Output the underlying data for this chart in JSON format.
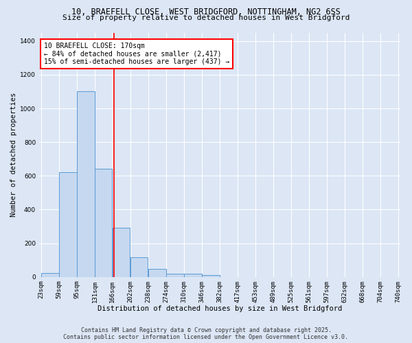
{
  "title_line1": "10, BRAEFELL CLOSE, WEST BRIDGFORD, NOTTINGHAM, NG2 6SS",
  "title_line2": "Size of property relative to detached houses in West Bridgford",
  "xlabel": "Distribution of detached houses by size in West Bridgford",
  "ylabel": "Number of detached properties",
  "bin_edges": [
    23,
    59,
    95,
    131,
    166,
    202,
    238,
    274,
    310,
    346,
    382,
    417,
    453,
    489,
    525,
    561,
    597,
    632,
    668,
    704,
    740
  ],
  "counts": [
    25,
    620,
    1100,
    640,
    290,
    115,
    47,
    20,
    18,
    10,
    0,
    0,
    0,
    0,
    0,
    0,
    0,
    0,
    0,
    0
  ],
  "bar_color": "#c5d8f0",
  "bar_edge_color": "#5b9bd5",
  "vline_x": 170,
  "vline_color": "red",
  "annotation_text": "10 BRAEFELL CLOSE: 170sqm\n← 84% of detached houses are smaller (2,417)\n15% of semi-detached houses are larger (437) →",
  "annotation_box_color": "white",
  "annotation_box_edge": "red",
  "background_color": "#dce6f5",
  "grid_color": "white",
  "ylim": [
    0,
    1450
  ],
  "yticks": [
    0,
    200,
    400,
    600,
    800,
    1000,
    1200,
    1400
  ],
  "tick_labels": [
    "23sqm",
    "59sqm",
    "95sqm",
    "131sqm",
    "166sqm",
    "202sqm",
    "238sqm",
    "274sqm",
    "310sqm",
    "346sqm",
    "382sqm",
    "417sqm",
    "453sqm",
    "489sqm",
    "525sqm",
    "561sqm",
    "597sqm",
    "632sqm",
    "668sqm",
    "704sqm",
    "740sqm"
  ],
  "footer_line1": "Contains HM Land Registry data © Crown copyright and database right 2025.",
  "footer_line2": "Contains public sector information licensed under the Open Government Licence v3.0.",
  "title_fontsize": 8.5,
  "subtitle_fontsize": 8,
  "axis_label_fontsize": 7.5,
  "tick_fontsize": 6.5,
  "annotation_fontsize": 7,
  "footer_fontsize": 6
}
